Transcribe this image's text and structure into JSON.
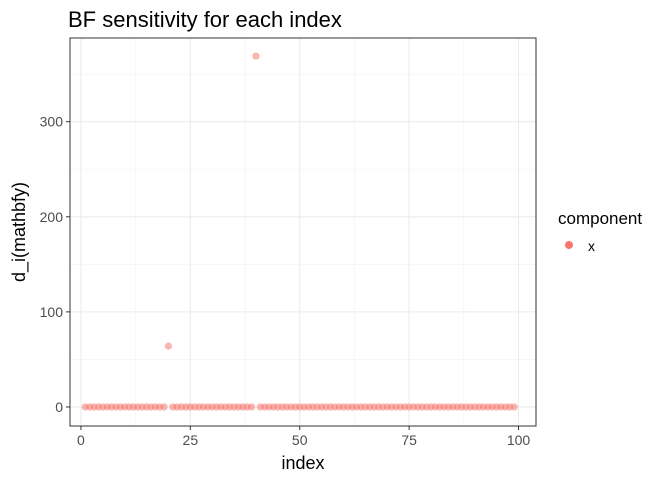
{
  "chart_data": {
    "type": "scatter",
    "title": "BF sensitivity for each index",
    "xlabel": "index",
    "ylabel": "d_i(mathbfy)",
    "xlim": [
      -2.5,
      104
    ],
    "ylim": [
      -20,
      388
    ],
    "x_ticks": [
      0,
      25,
      50,
      75,
      100
    ],
    "x_tick_labels": [
      "0",
      "25",
      "50",
      "75",
      "100"
    ],
    "y_ticks": [
      0,
      100,
      200,
      300
    ],
    "y_tick_labels": [
      "0",
      "100",
      "200",
      "300"
    ],
    "grid": true,
    "legend": {
      "title": "component",
      "position": "right",
      "entries": [
        "x"
      ]
    },
    "point_color": "#F8766D",
    "point_alpha": 0.55,
    "series": [
      {
        "name": "x",
        "x": [
          1,
          2,
          3,
          4,
          5,
          6,
          7,
          8,
          9,
          10,
          11,
          12,
          13,
          14,
          15,
          16,
          17,
          18,
          19,
          20,
          21,
          22,
          23,
          24,
          25,
          26,
          27,
          28,
          29,
          30,
          31,
          32,
          33,
          34,
          35,
          36,
          37,
          38,
          39,
          40,
          41,
          42,
          43,
          44,
          45,
          46,
          47,
          48,
          49,
          50,
          51,
          52,
          53,
          54,
          55,
          56,
          57,
          58,
          59,
          60,
          61,
          62,
          63,
          64,
          65,
          66,
          67,
          68,
          69,
          70,
          71,
          72,
          73,
          74,
          75,
          76,
          77,
          78,
          79,
          80,
          81,
          82,
          83,
          84,
          85,
          86,
          87,
          88,
          89,
          90,
          91,
          92,
          93,
          94,
          95,
          96,
          97,
          98,
          99
        ],
        "y": [
          0,
          0,
          0,
          0,
          0,
          0,
          0,
          0,
          0,
          0,
          0,
          0,
          0,
          0,
          0,
          0,
          0,
          0,
          0,
          64,
          0,
          0,
          0,
          0,
          0,
          0,
          0,
          0,
          0,
          0,
          0,
          0,
          0,
          0,
          0,
          0,
          0,
          0,
          0,
          369,
          0,
          0,
          0,
          0,
          0,
          0,
          0,
          0,
          0,
          0,
          0,
          0,
          0,
          0,
          0,
          0,
          0,
          0,
          0,
          0,
          0,
          0,
          0,
          0,
          0,
          0,
          0,
          0,
          0,
          0,
          0,
          0,
          0,
          0,
          0,
          0,
          0,
          0,
          0,
          0,
          0,
          0,
          0,
          0,
          0,
          0,
          0,
          0,
          0,
          0,
          0,
          0,
          0,
          0,
          0,
          0,
          0,
          0,
          0
        ]
      }
    ]
  }
}
